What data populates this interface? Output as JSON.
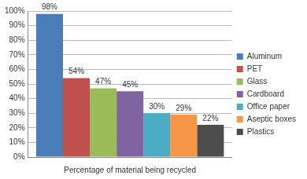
{
  "chart_data": {
    "type": "bar",
    "categories": [
      "Percentage of material being recycled"
    ],
    "series": [
      {
        "name": "Aluminum",
        "color": "#4a7ebb",
        "values": [
          98
        ],
        "value_labels": [
          "98%"
        ]
      },
      {
        "name": "PET",
        "color": "#c0504d",
        "values": [
          54
        ],
        "value_labels": [
          "54%"
        ]
      },
      {
        "name": "Glass",
        "color": "#9bbb59",
        "values": [
          47
        ],
        "value_labels": [
          "47%"
        ]
      },
      {
        "name": "Cardboard",
        "color": "#8064a2",
        "values": [
          45
        ],
        "value_labels": [
          "45%"
        ]
      },
      {
        "name": "Office paper",
        "color": "#4bacc6",
        "values": [
          30
        ],
        "value_labels": [
          "30%"
        ]
      },
      {
        "name": "Aseptic boxes",
        "color": "#f79646",
        "values": [
          29
        ],
        "value_labels": [
          "29%"
        ]
      },
      {
        "name": "Plastics",
        "color": "#4d4d4d",
        "values": [
          22
        ],
        "value_labels": [
          "22%"
        ]
      }
    ],
    "ylim": [
      0,
      100
    ],
    "yticks": [
      {
        "value": 0,
        "label": "0%"
      },
      {
        "value": 10,
        "label": "10%"
      },
      {
        "value": 20,
        "label": "20%"
      },
      {
        "value": 30,
        "label": "30%"
      },
      {
        "value": 40,
        "label": "40%"
      },
      {
        "value": 50,
        "label": "50%"
      },
      {
        "value": 60,
        "label": "60%"
      },
      {
        "value": 70,
        "label": "70%"
      },
      {
        "value": 80,
        "label": "80%"
      },
      {
        "value": 90,
        "label": "90%"
      },
      {
        "value": 100,
        "label": "100%"
      }
    ],
    "grid": true,
    "legend": "right",
    "data_labels": true
  }
}
